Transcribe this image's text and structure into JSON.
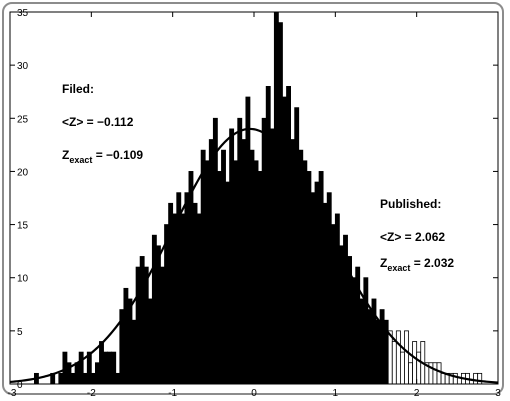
{
  "chart_data": {
    "type": "bar",
    "title": "",
    "xlabel": "",
    "ylabel": "",
    "xlim": [
      -3,
      3
    ],
    "ylim": [
      0,
      35
    ],
    "x_ticks": [
      -3,
      -2,
      -1,
      0,
      1,
      2,
      3
    ],
    "x_tick_labels": [
      "-3",
      "-2",
      "-1",
      "0",
      "1",
      "2",
      "3"
    ],
    "y_ticks": [
      0,
      5,
      10,
      15,
      20,
      25,
      30,
      35
    ],
    "y_tick_labels": [
      "0",
      "5",
      "10",
      "15",
      "20",
      "25",
      "30",
      "35"
    ],
    "bin_width": 0.05,
    "series": [
      {
        "name": "Filed",
        "fill": "#000000",
        "bins": [
          [
            -2.7,
            1
          ],
          [
            -2.65,
            0
          ],
          [
            -2.6,
            0
          ],
          [
            -2.55,
            0
          ],
          [
            -2.5,
            1
          ],
          [
            -2.45,
            0
          ],
          [
            -2.4,
            1
          ],
          [
            -2.35,
            3
          ],
          [
            -2.3,
            2
          ],
          [
            -2.25,
            1
          ],
          [
            -2.2,
            2
          ],
          [
            -2.15,
            3
          ],
          [
            -2.1,
            1
          ],
          [
            -2.05,
            3
          ],
          [
            -2.0,
            1
          ],
          [
            -1.95,
            2
          ],
          [
            -1.9,
            4
          ],
          [
            -1.85,
            3
          ],
          [
            -1.8,
            3
          ],
          [
            -1.75,
            3
          ],
          [
            -1.7,
            1
          ],
          [
            -1.65,
            7
          ],
          [
            -1.6,
            9
          ],
          [
            -1.55,
            8
          ],
          [
            -1.5,
            6
          ],
          [
            -1.45,
            11
          ],
          [
            -1.4,
            12
          ],
          [
            -1.35,
            11
          ],
          [
            -1.3,
            8
          ],
          [
            -1.25,
            14
          ],
          [
            -1.2,
            13
          ],
          [
            -1.15,
            11
          ],
          [
            -1.1,
            15
          ],
          [
            -1.05,
            17
          ],
          [
            -1.0,
            16
          ],
          [
            -0.95,
            18
          ],
          [
            -0.9,
            16
          ],
          [
            -0.85,
            18
          ],
          [
            -0.8,
            20
          ],
          [
            -0.75,
            17
          ],
          [
            -0.7,
            16
          ],
          [
            -0.65,
            22
          ],
          [
            -0.6,
            21
          ],
          [
            -0.55,
            23
          ],
          [
            -0.5,
            25
          ],
          [
            -0.45,
            20
          ],
          [
            -0.4,
            22
          ],
          [
            -0.35,
            19
          ],
          [
            -0.3,
            24
          ],
          [
            -0.25,
            21
          ],
          [
            -0.2,
            25
          ],
          [
            -0.15,
            23
          ],
          [
            -0.1,
            27
          ],
          [
            -0.05,
            22
          ],
          [
            0.0,
            21
          ],
          [
            0.05,
            20
          ],
          [
            0.1,
            25
          ],
          [
            0.15,
            28
          ],
          [
            0.2,
            24
          ],
          [
            0.25,
            35
          ],
          [
            0.3,
            34
          ],
          [
            0.35,
            27
          ],
          [
            0.4,
            28
          ],
          [
            0.45,
            23
          ],
          [
            0.5,
            26
          ],
          [
            0.55,
            22
          ],
          [
            0.6,
            21
          ],
          [
            0.65,
            20
          ],
          [
            0.7,
            18
          ],
          [
            0.75,
            19
          ],
          [
            0.8,
            20
          ],
          [
            0.85,
            17
          ],
          [
            0.9,
            18
          ],
          [
            0.95,
            15
          ],
          [
            1.0,
            16
          ],
          [
            1.05,
            13
          ],
          [
            1.1,
            14
          ],
          [
            1.15,
            12
          ],
          [
            1.2,
            10
          ],
          [
            1.25,
            11
          ],
          [
            1.3,
            8
          ],
          [
            1.35,
            10
          ],
          [
            1.4,
            7
          ],
          [
            1.45,
            8
          ],
          [
            1.5,
            6
          ],
          [
            1.55,
            7
          ],
          [
            1.6,
            6
          ]
        ]
      },
      {
        "name": "Published",
        "fill": "#ffffff",
        "bins": [
          [
            1.65,
            5
          ],
          [
            1.7,
            4
          ],
          [
            1.75,
            5
          ],
          [
            1.8,
            3
          ],
          [
            1.85,
            5
          ],
          [
            1.9,
            2
          ],
          [
            1.95,
            4
          ],
          [
            2.0,
            3
          ],
          [
            2.05,
            4
          ],
          [
            2.1,
            2
          ],
          [
            2.15,
            2
          ],
          [
            2.2,
            2
          ],
          [
            2.25,
            2
          ],
          [
            2.3,
            1
          ],
          [
            2.35,
            1
          ],
          [
            2.4,
            1
          ],
          [
            2.45,
            1
          ],
          [
            2.5,
            0
          ],
          [
            2.55,
            1
          ],
          [
            2.6,
            1
          ],
          [
            2.65,
            0
          ],
          [
            2.7,
            1
          ],
          [
            2.75,
            1
          ]
        ]
      }
    ],
    "fit_curve": {
      "type": "gaussian",
      "mean": -0.05,
      "sigma": 0.95,
      "peak": 24
    },
    "annotations": {
      "filed": {
        "title": "Filed:",
        "mean_label": "<Z> = −0.112",
        "exact_Z": "Z",
        "exact_sub": "exact",
        "exact_value": " = −0.109"
      },
      "published": {
        "title": "Published:",
        "mean_label": "<Z> = 2.062",
        "exact_Z": "Z",
        "exact_sub": "exact",
        "exact_value": " = 2.032"
      }
    }
  }
}
